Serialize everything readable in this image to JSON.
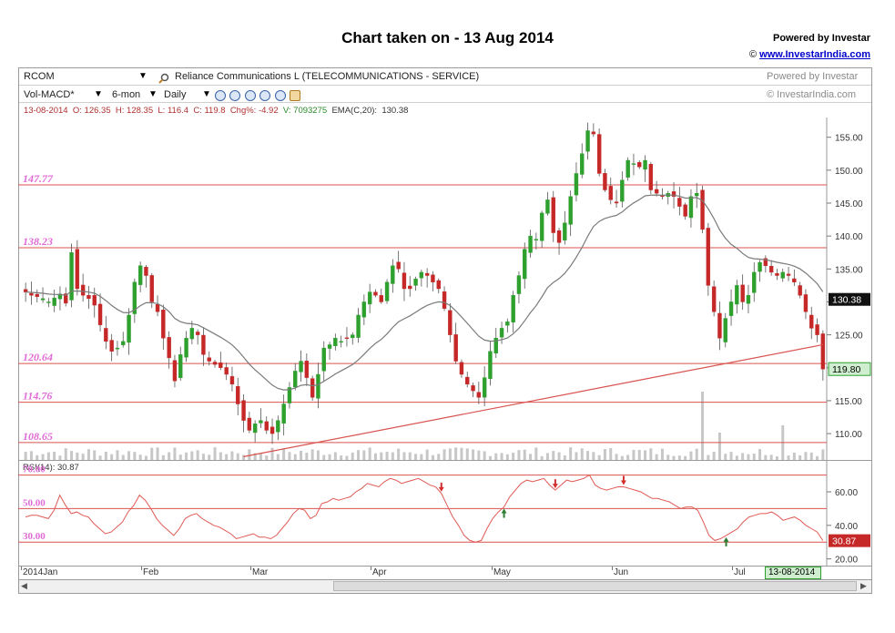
{
  "header": {
    "title": "Chart taken on - 13 Aug 2014",
    "powered_by": "Powered by Investar",
    "copyright_symbol": "©",
    "site_link": "www.InvestarIndia.com"
  },
  "toolbar": {
    "symbol": "RCOM",
    "company": "Reliance Communications L (TELECOMMUNICATIONS - SERVICE)",
    "indicator": "Vol-MACD*",
    "period": "6-mon",
    "interval": "Daily",
    "watermark_powered": "Powered by Investar",
    "watermark_site": "© InvestarIndia.com"
  },
  "info_bar": {
    "date": "13-08-2014",
    "open": "O: 126.35",
    "high": "H: 128.35",
    "low": "L: 116.4",
    "close": "C: 119.8",
    "change": "Chg%: -4.92",
    "volume": "V: 7093275",
    "ema": "EMA(C,20):",
    "ema_value": "130.38"
  },
  "colors": {
    "up": "#2ea02e",
    "down": "#c62828",
    "line": "#d9534f",
    "level_label": "#e06bd6",
    "ema": "#7a7a7a",
    "rsi": "#e05a55"
  },
  "chart_data": [
    {
      "type": "candlestick",
      "title": "",
      "ylim": [
        106,
        158
      ],
      "y_ticks": [
        "110.00",
        "115.00",
        "120.00",
        "125.00",
        "130.00",
        "135.00",
        "140.00",
        "145.00",
        "150.00",
        "155.00"
      ],
      "x_labels": [
        "2014Jan",
        "Feb",
        "Mar",
        "Apr",
        "May",
        "Jun",
        "Jul"
      ],
      "horizontal_levels": [
        {
          "label": "147.77",
          "value": 147.77
        },
        {
          "label": "138.23",
          "value": 138.23
        },
        {
          "label": "120.64",
          "value": 120.64
        },
        {
          "label": "114.76",
          "value": 114.76
        },
        {
          "label": "108.65",
          "value": 108.65
        }
      ],
      "trendline": {
        "from": [
          "Feb-27",
          106.5
        ],
        "to": [
          "Aug-13",
          123.5
        ]
      },
      "ema_label": "EMA(C,20)",
      "last_ema": "130.38",
      "last_close": "119.80",
      "cursor_date": "13-08-2014",
      "close_series": [
        131.5,
        131.0,
        130.8,
        130.5,
        130.0,
        130.6,
        131.2,
        129.8,
        137.5,
        132.0,
        131.0,
        130.5,
        129.5,
        126.5,
        124.0,
        122.5,
        123.0,
        124.0,
        128.0,
        133.0,
        135.5,
        134.0,
        130.0,
        128.5,
        124.5,
        121.5,
        118.0,
        122.0,
        124.5,
        126.0,
        125.0,
        122.0,
        121.0,
        120.5,
        120.0,
        119.0,
        117.5,
        114.5,
        112.0,
        110.5,
        111.5,
        112.0,
        110.5,
        110.0,
        112.0,
        114.5,
        117.0,
        119.5,
        121.0,
        118.5,
        115.5,
        119.0,
        123.0,
        123.5,
        124.5,
        124.0,
        124.5,
        125.0,
        128.0,
        130.0,
        131.5,
        131.0,
        130.0,
        133.0,
        135.5,
        135.0,
        132.0,
        132.0,
        133.5,
        134.5,
        134.0,
        133.0,
        132.0,
        129.0,
        125.0,
        121.0,
        119.0,
        117.5,
        116.5,
        115.5,
        118.5,
        122.5,
        124.5,
        126.0,
        127.0,
        131.0,
        134.0,
        138.0,
        140.0,
        139.5,
        143.5,
        145.5,
        140.5,
        139.0,
        142.0,
        146.0,
        149.5,
        152.5,
        156.0,
        155.5,
        149.5,
        147.0,
        145.5,
        145.0,
        148.5,
        151.5,
        151.0,
        150.5,
        151.5,
        147.0,
        146.5,
        146.0,
        146.5,
        146.0,
        144.5,
        143.0,
        146.0,
        146.5,
        141.0,
        132.5,
        128.5,
        124.5,
        127.5,
        130.0,
        132.5,
        130.0,
        131.0,
        134.5,
        136.0,
        135.5,
        134.5,
        134.0,
        134.5,
        134.0,
        133.0,
        131.0,
        128.5,
        126.0,
        125.0,
        119.8
      ]
    },
    {
      "type": "line",
      "title": "",
      "label": "RSI(14)",
      "last_value": "30.87",
      "ylim": [
        16,
        79
      ],
      "levels": [
        {
          "label": "70.00",
          "value": 70
        },
        {
          "label": "50.00",
          "value": 50
        },
        {
          "label": "30.00",
          "value": 30
        }
      ],
      "y_ticks": [
        "20.00",
        "40.00",
        "60.00"
      ],
      "series": [
        {
          "values": [
            45,
            46,
            46,
            45,
            44,
            49,
            58,
            52,
            47,
            48,
            46,
            45,
            41,
            38,
            35,
            36,
            39,
            42,
            48,
            52,
            58,
            55,
            50,
            44,
            40,
            37,
            34,
            38,
            44,
            46,
            47,
            44,
            42,
            40,
            39,
            37,
            35,
            32,
            33,
            34,
            35,
            33,
            33,
            32,
            34,
            38,
            42,
            47,
            50,
            49,
            44,
            46,
            53,
            54,
            56,
            55,
            56,
            57,
            60,
            62,
            65,
            64,
            63,
            66,
            68,
            67,
            65,
            66,
            67,
            68,
            66,
            64,
            63,
            59,
            52,
            45,
            40,
            34,
            31,
            30,
            31,
            38,
            44,
            48,
            51,
            57,
            61,
            65,
            67,
            66,
            67,
            68,
            64,
            61,
            64,
            67,
            66,
            67,
            68,
            70,
            64,
            62,
            61,
            62,
            63,
            63,
            62,
            61,
            60,
            58,
            56,
            56,
            55,
            54,
            52,
            50,
            51,
            51,
            49,
            42,
            34,
            31,
            32,
            34,
            36,
            38,
            42,
            45,
            46,
            47,
            47,
            48,
            46,
            43,
            44,
            45,
            43,
            40,
            38,
            36,
            30.87
          ]
        }
      ],
      "signals": [
        {
          "kind": "sell",
          "at": "Apr-21"
        },
        {
          "kind": "buy",
          "at": "May-13"
        },
        {
          "kind": "sell",
          "at": "May-27"
        },
        {
          "kind": "sell",
          "at": "Jun-13"
        },
        {
          "kind": "buy",
          "at": "Jul-17"
        }
      ]
    }
  ]
}
